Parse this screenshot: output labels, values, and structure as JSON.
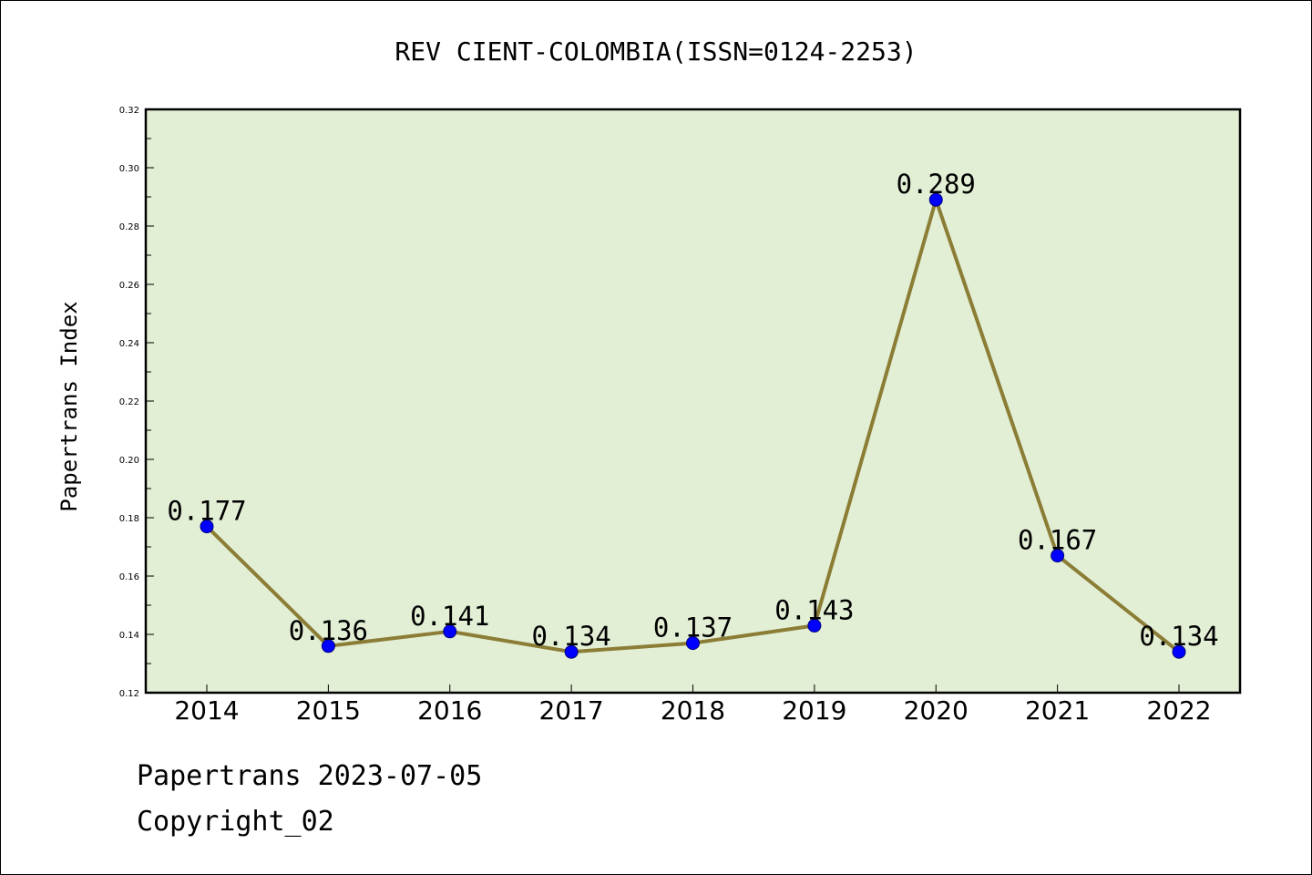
{
  "chart_data": {
    "type": "line",
    "title": "REV CIENT-COLOMBIA(ISSN=0124-2253)",
    "xlabel": "",
    "ylabel": "Papertrans Index",
    "categories": [
      "2014",
      "2015",
      "2016",
      "2017",
      "2018",
      "2019",
      "2020",
      "2021",
      "2022"
    ],
    "series": [
      {
        "values": [
          0.177,
          0.136,
          0.141,
          0.134,
          0.137,
          0.143,
          0.289,
          0.167,
          0.134
        ],
        "labels": [
          "0.177",
          "0.136",
          "0.141",
          "0.134",
          "0.137",
          "0.143",
          "0.289",
          "0.167",
          "0.134"
        ]
      }
    ],
    "ylim": [
      0.12,
      0.32
    ],
    "yticks": [
      "0.12",
      "0.14",
      "0.16",
      "0.18",
      "0.20",
      "0.22",
      "0.24",
      "0.26",
      "0.28",
      "0.30",
      "0.32"
    ],
    "grid": false,
    "legend": "none",
    "colors": {
      "plot_background": "#e2efd5",
      "line": "#8b7d35",
      "marker": "#0000ff"
    }
  },
  "footer": {
    "line1": "Papertrans 2023-07-05",
    "line2": "Copyright_02"
  }
}
